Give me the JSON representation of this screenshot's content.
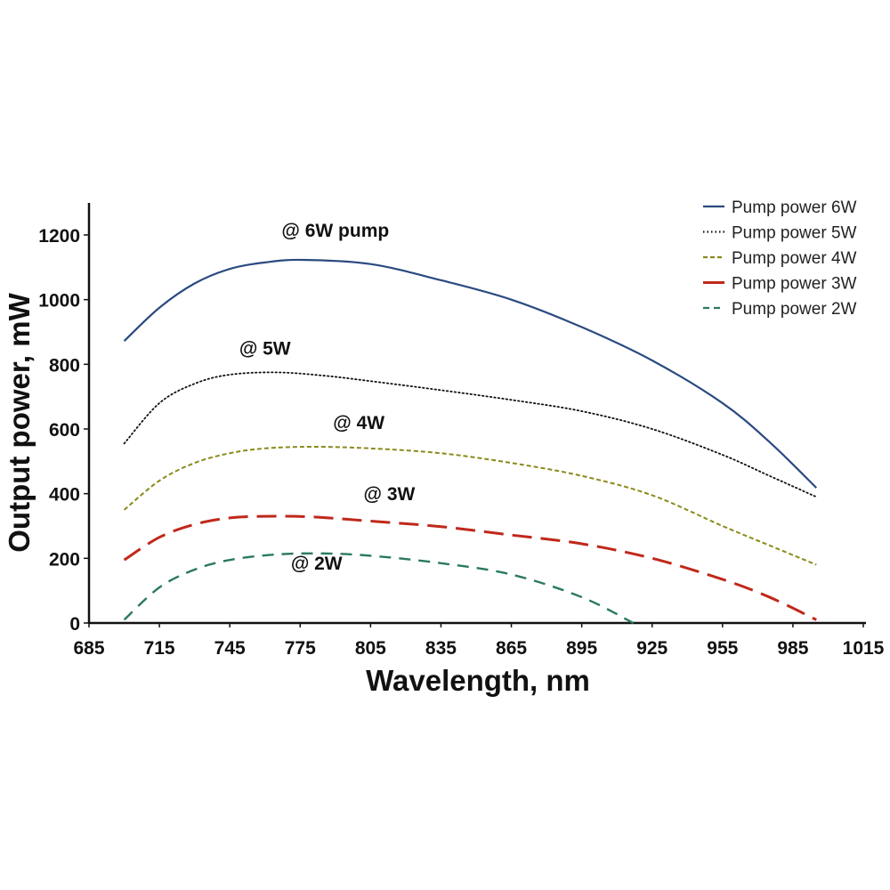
{
  "chart_data": {
    "type": "line",
    "title": "",
    "xlabel": "Wavelength, nm",
    "ylabel": "Output power, mW",
    "xlim": [
      685,
      1015
    ],
    "ylim": [
      0,
      1300
    ],
    "xticks": [
      685,
      715,
      745,
      775,
      805,
      835,
      865,
      895,
      925,
      955,
      985,
      1015
    ],
    "yticks": [
      0,
      200,
      400,
      600,
      800,
      1000,
      1200
    ],
    "grid": false,
    "legend_position": "top-right",
    "series": [
      {
        "name": "Pump power 6W",
        "color": "#2b4a80",
        "style": "solid",
        "x": [
          700,
          715,
          730,
          745,
          760,
          776,
          805,
          835,
          865,
          895,
          925,
          955,
          975,
          995
        ],
        "y": [
          872,
          975,
          1050,
          1095,
          1115,
          1123,
          1110,
          1060,
          1000,
          915,
          812,
          680,
          560,
          418
        ]
      },
      {
        "name": "Pump power 5W",
        "color": "#111111",
        "style": "dotted",
        "x": [
          700,
          715,
          730,
          745,
          765,
          785,
          805,
          835,
          865,
          895,
          925,
          955,
          975,
          995
        ],
        "y": [
          555,
          680,
          740,
          768,
          775,
          765,
          748,
          720,
          690,
          655,
          600,
          520,
          455,
          390
        ]
      },
      {
        "name": "Pump power 4W",
        "color": "#8a8a1c",
        "style": "short-dash",
        "x": [
          700,
          715,
          730,
          745,
          760,
          780,
          805,
          835,
          865,
          895,
          925,
          955,
          975,
          995
        ],
        "y": [
          350,
          440,
          495,
          525,
          540,
          545,
          540,
          525,
          495,
          455,
          395,
          300,
          240,
          180
        ]
      },
      {
        "name": "Pump power 3W",
        "color": "#c0281a",
        "style": "long-dash",
        "x": [
          700,
          715,
          730,
          745,
          760,
          780,
          805,
          835,
          865,
          895,
          925,
          955,
          975,
          995
        ],
        "y": [
          195,
          265,
          305,
          325,
          330,
          328,
          315,
          298,
          272,
          245,
          200,
          135,
          80,
          10
        ]
      },
      {
        "name": "Pump power 2W",
        "color": "#2a7a5a",
        "style": "dash",
        "x": [
          700,
          715,
          730,
          745,
          765,
          785,
          805,
          835,
          865,
          895,
          917
        ],
        "y": [
          10,
          110,
          165,
          195,
          212,
          215,
          208,
          185,
          150,
          80,
          0
        ]
      }
    ],
    "annotations": [
      {
        "text": "@ 6W pump",
        "x": 790,
        "y": 1195
      },
      {
        "text": "@ 5W",
        "x": 760,
        "y": 830
      },
      {
        "text": "@ 4W",
        "x": 800,
        "y": 600
      },
      {
        "text": "@ 3W",
        "x": 813,
        "y": 380
      },
      {
        "text": "@ 2W",
        "x": 782,
        "y": 165
      }
    ]
  }
}
